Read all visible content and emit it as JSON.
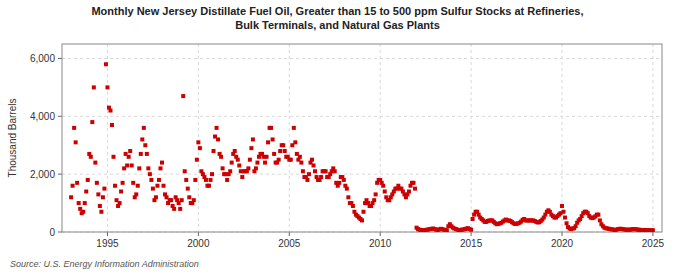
{
  "chart_data": {
    "type": "scatter",
    "title": "Monthly New Jersey Distillate Fuel Oil, Greater than 15 to 500 ppm Sulfur Stocks at Refineries,\nBulk Terminals, and Natural Gas Plants",
    "ylabel": "Thousand Barrels",
    "source": "Source: U.S. Energy Information Administration",
    "color": "#cc0000",
    "marker": "square",
    "grid": true,
    "xlim": [
      1992.5,
      2025.5
    ],
    "xticks": [
      1995,
      2000,
      2005,
      2010,
      2015,
      2020,
      2025
    ],
    "ylim": [
      0,
      6500
    ],
    "yticks": [
      0,
      {
        "value": 2000,
        "label": "2,000"
      },
      {
        "value": 4000,
        "label": "4,000"
      },
      {
        "value": 6000,
        "label": "6,000"
      }
    ],
    "x": [
      1993.0,
      1993.083,
      1993.167,
      1993.25,
      1993.333,
      1993.417,
      1993.5,
      1993.583,
      1993.667,
      1993.75,
      1993.833,
      1993.917,
      1994.0,
      1994.083,
      1994.167,
      1994.25,
      1994.333,
      1994.417,
      1994.5,
      1994.583,
      1994.667,
      1994.75,
      1994.833,
      1994.917,
      1995.0,
      1995.083,
      1995.167,
      1995.25,
      1995.333,
      1995.417,
      1995.5,
      1995.583,
      1995.667,
      1995.75,
      1995.833,
      1995.917,
      1996.0,
      1996.083,
      1996.167,
      1996.25,
      1996.333,
      1996.417,
      1996.5,
      1996.583,
      1996.667,
      1996.75,
      1996.833,
      1996.917,
      1997.0,
      1997.083,
      1997.167,
      1997.25,
      1997.333,
      1997.417,
      1997.5,
      1997.583,
      1997.667,
      1997.75,
      1997.833,
      1997.917,
      1998.0,
      1998.083,
      1998.167,
      1998.25,
      1998.333,
      1998.417,
      1998.5,
      1998.583,
      1998.667,
      1998.75,
      1998.833,
      1998.917,
      1999.0,
      1999.083,
      1999.167,
      1999.25,
      1999.333,
      1999.417,
      1999.5,
      1999.583,
      1999.667,
      1999.75,
      1999.833,
      1999.917,
      2000.0,
      2000.083,
      2000.167,
      2000.25,
      2000.333,
      2000.417,
      2000.5,
      2000.583,
      2000.667,
      2000.75,
      2000.833,
      2000.917,
      2001.0,
      2001.083,
      2001.167,
      2001.25,
      2001.333,
      2001.417,
      2001.5,
      2001.583,
      2001.667,
      2001.75,
      2001.833,
      2001.917,
      2002.0,
      2002.083,
      2002.167,
      2002.25,
      2002.333,
      2002.417,
      2002.5,
      2002.583,
      2002.667,
      2002.75,
      2002.833,
      2002.917,
      2003.0,
      2003.083,
      2003.167,
      2003.25,
      2003.333,
      2003.417,
      2003.5,
      2003.583,
      2003.667,
      2003.75,
      2003.833,
      2003.917,
      2004.0,
      2004.083,
      2004.167,
      2004.25,
      2004.333,
      2004.417,
      2004.5,
      2004.583,
      2004.667,
      2004.75,
      2004.833,
      2004.917,
      2005.0,
      2005.083,
      2005.167,
      2005.25,
      2005.333,
      2005.417,
      2005.5,
      2005.583,
      2005.667,
      2005.75,
      2005.833,
      2005.917,
      2006.0,
      2006.083,
      2006.167,
      2006.25,
      2006.333,
      2006.417,
      2006.5,
      2006.583,
      2006.667,
      2006.75,
      2006.833,
      2006.917,
      2007.0,
      2007.083,
      2007.167,
      2007.25,
      2007.333,
      2007.417,
      2007.5,
      2007.583,
      2007.667,
      2007.75,
      2007.833,
      2007.917,
      2008.0,
      2008.083,
      2008.167,
      2008.25,
      2008.333,
      2008.417,
      2008.5,
      2008.583,
      2008.667,
      2008.75,
      2008.833,
      2008.917,
      2009.0,
      2009.083,
      2009.167,
      2009.25,
      2009.333,
      2009.417,
      2009.5,
      2009.583,
      2009.667,
      2009.75,
      2009.833,
      2009.917,
      2010.0,
      2010.083,
      2010.167,
      2010.25,
      2010.333,
      2010.417,
      2010.5,
      2010.583,
      2010.667,
      2010.75,
      2010.833,
      2010.917,
      2011.0,
      2011.083,
      2011.167,
      2011.25,
      2011.333,
      2011.417,
      2011.5,
      2011.583,
      2011.667,
      2011.75,
      2011.833,
      2011.917,
      2012.0,
      2012.083,
      2012.167,
      2012.25,
      2012.333,
      2012.417,
      2012.5,
      2012.583,
      2012.667,
      2012.75,
      2012.833,
      2012.917,
      2013.0,
      2013.083,
      2013.167,
      2013.25,
      2013.333,
      2013.417,
      2013.5,
      2013.583,
      2013.667,
      2013.75,
      2013.833,
      2013.917,
      2014.0,
      2014.083,
      2014.167,
      2014.25,
      2014.333,
      2014.417,
      2014.5,
      2014.583,
      2014.667,
      2014.75,
      2014.833,
      2014.917,
      2015.0,
      2015.083,
      2015.167,
      2015.25,
      2015.333,
      2015.417,
      2015.5,
      2015.583,
      2015.667,
      2015.75,
      2015.833,
      2015.917,
      2016.0,
      2016.083,
      2016.167,
      2016.25,
      2016.333,
      2016.417,
      2016.5,
      2016.583,
      2016.667,
      2016.75,
      2016.833,
      2016.917,
      2017.0,
      2017.083,
      2017.167,
      2017.25,
      2017.333,
      2017.417,
      2017.5,
      2017.583,
      2017.667,
      2017.75,
      2017.833,
      2017.917,
      2018.0,
      2018.083,
      2018.167,
      2018.25,
      2018.333,
      2018.417,
      2018.5,
      2018.583,
      2018.667,
      2018.75,
      2018.833,
      2018.917,
      2019.0,
      2019.083,
      2019.167,
      2019.25,
      2019.333,
      2019.417,
      2019.5,
      2019.583,
      2019.667,
      2019.75,
      2019.833,
      2019.917,
      2020.0,
      2020.083,
      2020.167,
      2020.25,
      2020.333,
      2020.417,
      2020.5,
      2020.583,
      2020.667,
      2020.75,
      2020.833,
      2020.917,
      2021.0,
      2021.083,
      2021.167,
      2021.25,
      2021.333,
      2021.417,
      2021.5,
      2021.583,
      2021.667,
      2021.75,
      2021.833,
      2021.917,
      2022.0,
      2022.083,
      2022.167,
      2022.25,
      2022.333,
      2022.417,
      2022.5,
      2022.583,
      2022.667,
      2022.75,
      2022.833,
      2022.917,
      2023.0,
      2023.083,
      2023.167,
      2023.25,
      2023.333,
      2023.417,
      2023.5,
      2023.583,
      2023.667,
      2023.75,
      2023.833,
      2023.917,
      2024.0,
      2024.083,
      2024.167,
      2024.25,
      2024.333,
      2024.417,
      2024.5,
      2024.583,
      2024.667,
      2024.75,
      2024.833,
      2024.917,
      2025.0
    ],
    "values": [
      1200,
      1600,
      3600,
      3100,
      1700,
      1000,
      800,
      650,
      700,
      1000,
      1400,
      1800,
      2700,
      2600,
      3800,
      5000,
      2400,
      1700,
      1300,
      900,
      700,
      1200,
      1500,
      5800,
      5000,
      4300,
      4200,
      3700,
      2600,
      1600,
      1100,
      900,
      1000,
      1400,
      1700,
      2200,
      2700,
      2300,
      2600,
      2800,
      2300,
      1700,
      1200,
      1300,
      1600,
      2200,
      2700,
      3200,
      3600,
      3000,
      2700,
      2200,
      2000,
      1800,
      1500,
      1100,
      1200,
      1600,
      1800,
      2200,
      2400,
      1600,
      1300,
      1200,
      1000,
      1100,
      1100,
      900,
      800,
      1200,
      1100,
      1000,
      800,
      1100,
      4700,
      2100,
      1800,
      1500,
      1200,
      1000,
      1000,
      1100,
      1800,
      2500,
      3100,
      2900,
      2100,
      2000,
      1900,
      1800,
      1600,
      1600,
      1800,
      2000,
      2800,
      3300,
      3600,
      3200,
      2700,
      2600,
      2200,
      2000,
      2000,
      1800,
      2000,
      2100,
      2400,
      2700,
      2800,
      2600,
      2500,
      2300,
      2100,
      1900,
      2100,
      2100,
      2100,
      2200,
      2500,
      2900,
      3200,
      2100,
      2200,
      2400,
      2600,
      2700,
      2700,
      2600,
      2400,
      2600,
      3100,
      3600,
      3600,
      3200,
      2700,
      2400,
      2400,
      2500,
      2800,
      3000,
      3000,
      2800,
      2600,
      2600,
      2500,
      2500,
      3000,
      3600,
      3100,
      2700,
      2500,
      2600,
      2400,
      2100,
      1900,
      1900,
      1800,
      2000,
      2400,
      2500,
      2300,
      2100,
      1900,
      1800,
      1800,
      1900,
      2100,
      2100,
      2100,
      1900,
      1900,
      2000,
      2100,
      2200,
      2100,
      1700,
      1600,
      1700,
      1900,
      1900,
      1800,
      1600,
      1500,
      1200,
      1000,
      1000,
      900,
      700,
      600,
      550,
      500,
      450,
      400,
      700,
      1000,
      1100,
      1000,
      900,
      900,
      1000,
      1100,
      1300,
      1700,
      1800,
      1800,
      1700,
      1600,
      1400,
      1200,
      1100,
      1100,
      1200,
      1300,
      1400,
      1500,
      1500,
      1600,
      1500,
      1500,
      1400,
      1300,
      1200,
      1300,
      1400,
      1600,
      1700,
      1700,
      1500,
      150,
      100,
      80,
      70,
      60,
      60,
      70,
      80,
      90,
      100,
      110,
      120,
      100,
      80,
      70,
      90,
      110,
      100,
      80,
      70,
      60,
      200,
      270,
      200,
      150,
      120,
      100,
      80,
      70,
      70,
      80,
      90,
      100,
      120,
      130,
      100,
      80,
      450,
      600,
      700,
      700,
      600,
      500,
      450,
      400,
      350,
      350,
      380,
      400,
      400,
      400,
      350,
      300,
      270,
      280,
      300,
      320,
      360,
      400,
      430,
      400,
      400,
      380,
      340,
      300,
      280,
      280,
      300,
      320,
      360,
      420,
      450,
      400,
      400,
      400,
      400,
      400,
      400,
      380,
      350,
      330,
      340,
      380,
      430,
      500,
      600,
      700,
      750,
      700,
      600,
      550,
      500,
      500,
      550,
      600,
      650,
      900,
      700,
      500,
      300,
      170,
      120,
      100,
      120,
      130,
      200,
      320,
      400,
      450,
      550,
      650,
      700,
      700,
      650,
      550,
      500,
      480,
      500,
      540,
      600,
      600,
      400,
      270,
      200,
      150,
      130,
      120,
      110,
      100,
      90,
      80,
      70,
      80,
      100,
      110,
      110,
      100,
      90,
      80,
      80,
      80,
      80,
      90,
      100,
      100,
      90,
      80,
      80,
      70,
      70,
      70,
      70,
      60,
      60,
      60,
      60,
      60
    ]
  }
}
